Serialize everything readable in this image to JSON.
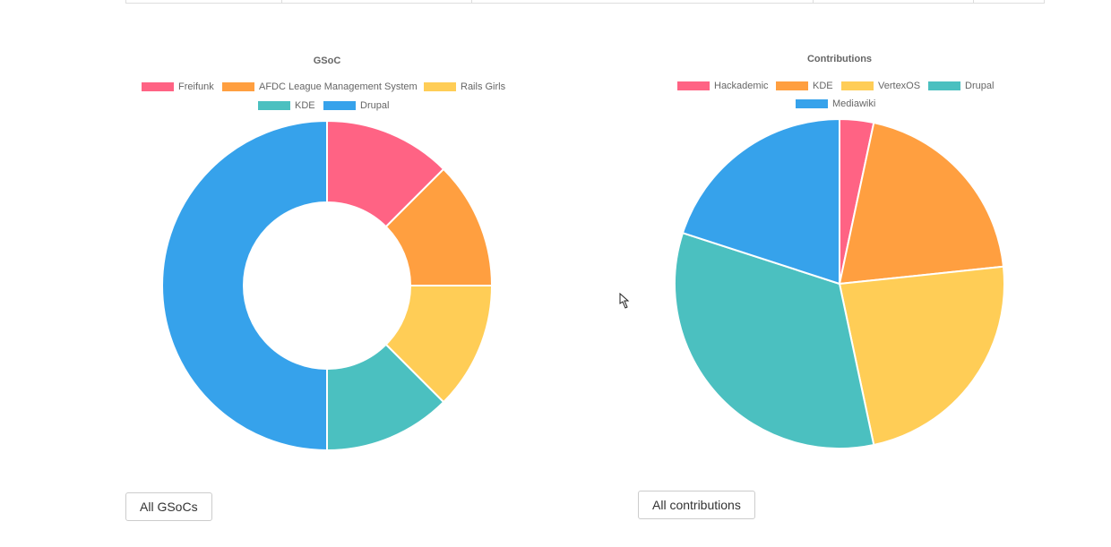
{
  "charts": [
    {
      "title": "GSoC",
      "button_label": "All GSoCs"
    },
    {
      "title": "Contributions",
      "button_label": "All contributions"
    }
  ],
  "chart_data": [
    {
      "type": "pie",
      "variant": "doughnut",
      "title": "GSoC",
      "legend_position": "top",
      "categories": [
        "Freifunk",
        "AFDC League Management System",
        "Rails Girls",
        "KDE",
        "Drupal"
      ],
      "values": [
        1,
        1,
        1,
        1,
        4
      ],
      "colors": [
        "#ff6384",
        "#ff9f40",
        "#ffcd56",
        "#4bc0c0",
        "#36a2eb"
      ]
    },
    {
      "type": "pie",
      "title": "Contributions",
      "legend_position": "top",
      "categories": [
        "Hackademic",
        "KDE",
        "VertexOS",
        "Drupal",
        "Mediawiki"
      ],
      "values": [
        1,
        6,
        7,
        10,
        6
      ],
      "colors": [
        "#ff6384",
        "#ff9f40",
        "#ffcd56",
        "#4bc0c0",
        "#36a2eb"
      ]
    }
  ],
  "icons": {
    "cursor": "pointer-cursor-icon"
  }
}
